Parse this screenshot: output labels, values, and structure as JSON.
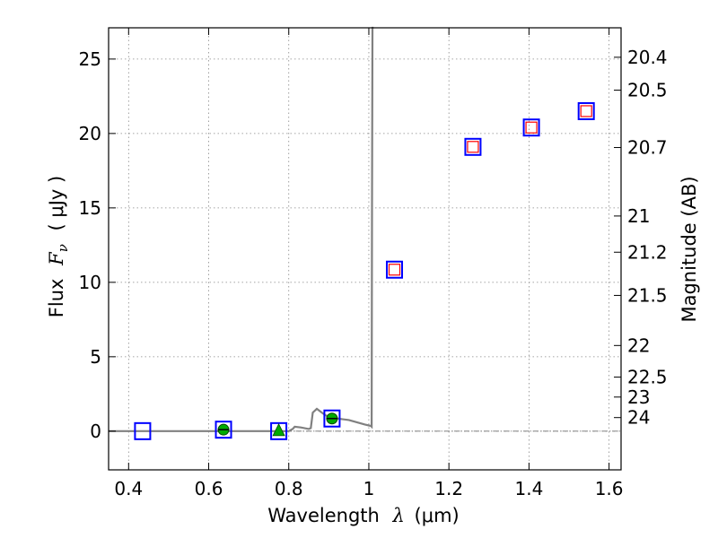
{
  "chart_data": {
    "type": "scatter",
    "xlabel": {
      "prefix": "Wavelength",
      "symbol": "λ",
      "units": "(μm)"
    },
    "ylabel": {
      "prefix": "Flux",
      "symbol": "F",
      "sub": "ν",
      "units": "( μJy )"
    },
    "y2label": "Magnitude (AB)",
    "xlim": [
      0.35,
      1.63
    ],
    "ylim": [
      -2.6,
      27.1
    ],
    "x_ticks": [
      0.4,
      0.6,
      0.8,
      1.0,
      1.2,
      1.4,
      1.6
    ],
    "x_tick_labels": [
      "0.4",
      "0.6",
      "0.8",
      "1",
      "1.2",
      "1.4",
      "1.6"
    ],
    "y_ticks": [
      0,
      5,
      10,
      15,
      20,
      25
    ],
    "y_tick_labels": [
      "0",
      "5",
      "10",
      "15",
      "20",
      "25"
    ],
    "mag_ticks": [
      20.4,
      20.5,
      20.7,
      21,
      21.2,
      21.5,
      22,
      22.5,
      23,
      24
    ],
    "mag_tick_labels": [
      "20.4",
      "20.5",
      "20.7",
      "21",
      "21.2",
      "21.5",
      "22",
      "22.5",
      "23",
      "24"
    ],
    "grid": true,
    "zero_line": 0,
    "colors": {
      "model": "#808080",
      "obs_square": "#0000ff",
      "model_square": "#ff0000",
      "detection": "#00aa00",
      "upper_limit": "#00aa00",
      "zero_line": "#555555",
      "grid": "#888888"
    },
    "model_sed": {
      "x": [
        0.35,
        0.6,
        0.8,
        0.81,
        0.815,
        0.83,
        0.85,
        0.855,
        0.86,
        0.87,
        0.88,
        0.89,
        0.9,
        0.92,
        0.95,
        0.97,
        0.99,
        1.005,
        1.007,
        1.008,
        1.009,
        1.012
      ],
      "y": [
        0.0,
        0.0,
        0.0,
        0.15,
        0.3,
        0.25,
        0.15,
        0.2,
        1.25,
        1.5,
        1.3,
        1.1,
        0.95,
        0.85,
        0.75,
        0.6,
        0.45,
        0.35,
        0.3,
        15.0,
        27.1,
        27.1
      ]
    },
    "observed_squares": {
      "x": [
        0.435,
        0.637,
        0.775,
        0.908,
        1.064,
        1.26,
        1.406,
        1.543
      ],
      "y": [
        0.0,
        0.1,
        0.0,
        0.85,
        10.85,
        19.1,
        20.4,
        21.5
      ]
    },
    "model_squares": {
      "x": [
        1.064,
        1.26,
        1.406,
        1.543
      ],
      "y": [
        10.85,
        19.1,
        20.4,
        21.5
      ]
    },
    "detections": {
      "x": [
        0.637,
        0.908
      ],
      "y": [
        0.1,
        0.85
      ]
    },
    "upper_limits": {
      "x": [
        0.775
      ],
      "y": [
        0.0
      ]
    }
  }
}
